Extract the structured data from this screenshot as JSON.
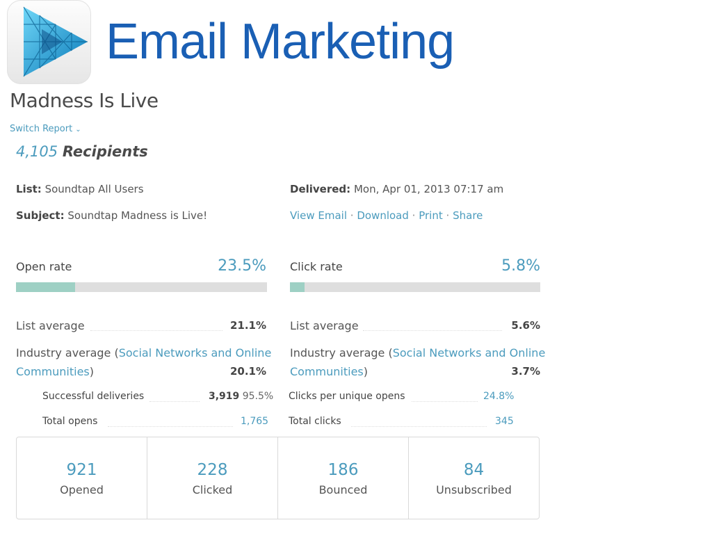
{
  "header": {
    "title": "Email Marketing",
    "logo_icon": "play-triangle-logo-icon"
  },
  "report": {
    "campaign_title": "Madness Is Live",
    "switch_report_label": "Switch Report",
    "recipients_count": "4,105",
    "recipients_label": "Recipients",
    "list_label": "List:",
    "list_value": "Soundtap All Users",
    "subject_label": "Subject:",
    "subject_value": "Soundtap Madness is Live!",
    "delivered_label": "Delivered:",
    "delivered_value": "Mon, Apr 01, 2013 07:17 am",
    "actions": {
      "view_email": "View Email",
      "download": "Download",
      "print": "Print",
      "share": "Share",
      "separator": "·"
    }
  },
  "open": {
    "label": "Open rate",
    "value": "23.5%",
    "fill_fraction": 0.235,
    "list_avg_label": "List average",
    "list_avg_value": "21.1%",
    "industry_prefix": "Industry average (",
    "industry_link": "Social Networks and Online",
    "industry_link2": "Communities",
    "industry_suffix": ")",
    "industry_value": "20.1%",
    "stats": [
      {
        "label": "Successful deliveries",
        "value": "3,919",
        "pct": "95.5%"
      },
      {
        "label": "Total opens",
        "value": "1,765"
      }
    ]
  },
  "click": {
    "label": "Click rate",
    "value": "5.8%",
    "fill_fraction": 0.058,
    "list_avg_label": "List average",
    "list_avg_value": "5.6%",
    "industry_prefix": "Industry average (",
    "industry_link": "Social Networks and Online",
    "industry_link2": "Communities",
    "industry_suffix": ")",
    "industry_value": "3.7%",
    "stats": [
      {
        "label": "Clicks per unique opens",
        "value": "24.8%"
      },
      {
        "label": "Total clicks",
        "value": "345"
      }
    ]
  },
  "summary": [
    {
      "value": "921",
      "label": "Opened"
    },
    {
      "value": "228",
      "label": "Clicked"
    },
    {
      "value": "186",
      "label": "Bounced"
    },
    {
      "value": "84",
      "label": "Unsubscribed"
    }
  ],
  "colors": {
    "accent": "#4b9bbd",
    "title_blue": "#1a5fb4",
    "bar_fill": "#9ed0c4",
    "bar_track": "#dedede"
  }
}
